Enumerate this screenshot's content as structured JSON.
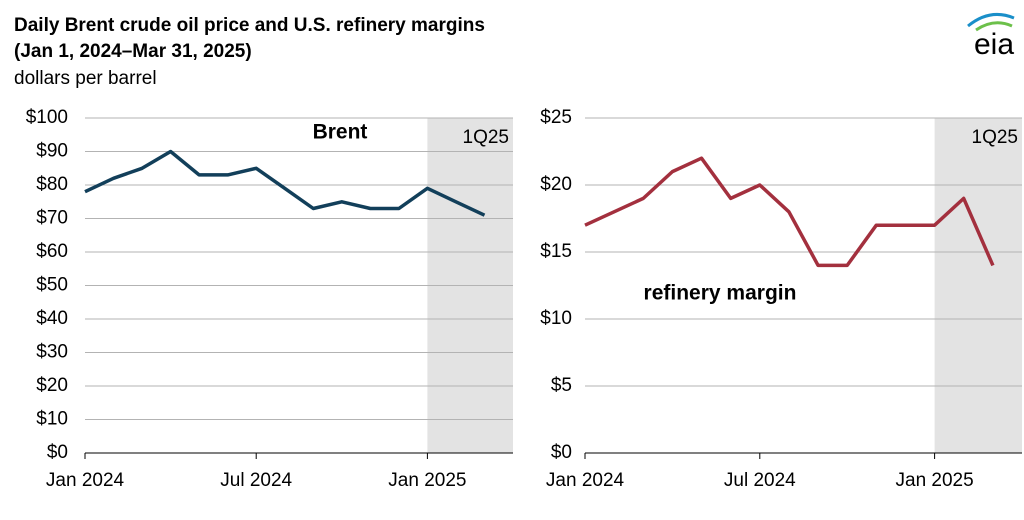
{
  "title": "Daily Brent crude oil price and U.S. refinery margins",
  "subtitle": "(Jan 1, 2024–Mar 31, 2025)",
  "y_label": "dollars per barrel",
  "logo": "eia",
  "chart_data": [
    {
      "type": "line",
      "x": [
        "2024-01",
        "2024-02",
        "2024-03",
        "2024-04",
        "2024-05",
        "2024-06",
        "2024-07",
        "2024-08",
        "2024-09",
        "2024-10",
        "2024-11",
        "2024-12",
        "2025-01",
        "2025-02",
        "2025-03"
      ],
      "series": [
        {
          "name": "Brent",
          "color": "#123f5a",
          "values": [
            78,
            82,
            85,
            90,
            83,
            83,
            85,
            79,
            73,
            75,
            73,
            73,
            79,
            75,
            71
          ]
        }
      ],
      "xlim": [
        "2024-01",
        "2025-04"
      ],
      "xticks": [
        {
          "value": "2024-01",
          "label": "Jan 2024"
        },
        {
          "value": "2024-07",
          "label": "Jul 2024"
        },
        {
          "value": "2025-01",
          "label": "Jan 2025"
        }
      ],
      "ylim": [
        0,
        100
      ],
      "yticks": [
        {
          "value": 0,
          "label": "$0"
        },
        {
          "value": 10,
          "label": "$10"
        },
        {
          "value": 20,
          "label": "$20"
        },
        {
          "value": 30,
          "label": "$30"
        },
        {
          "value": 40,
          "label": "$40"
        },
        {
          "value": 50,
          "label": "$50"
        },
        {
          "value": 60,
          "label": "$60"
        },
        {
          "value": 70,
          "label": "$70"
        },
        {
          "value": 80,
          "label": "$80"
        },
        {
          "value": 90,
          "label": "$90"
        },
        {
          "value": 100,
          "label": "$100"
        }
      ],
      "grid": true,
      "shade": {
        "label": "1Q25",
        "range": [
          "2025-01",
          "2025-04"
        ]
      }
    },
    {
      "type": "line",
      "x": [
        "2024-01",
        "2024-02",
        "2024-03",
        "2024-04",
        "2024-05",
        "2024-06",
        "2024-07",
        "2024-08",
        "2024-09",
        "2024-10",
        "2024-11",
        "2024-12",
        "2025-01",
        "2025-02",
        "2025-03"
      ],
      "series": [
        {
          "name": "refinery margin",
          "color": "#a3303e",
          "values": [
            17,
            18,
            19,
            21,
            22,
            19,
            20,
            18,
            14,
            14,
            17,
            17,
            17,
            19,
            14
          ]
        }
      ],
      "xlim": [
        "2024-01",
        "2025-04"
      ],
      "xticks": [
        {
          "value": "2024-01",
          "label": "Jan 2024"
        },
        {
          "value": "2024-07",
          "label": "Jul 2024"
        },
        {
          "value": "2025-01",
          "label": "Jan 2025"
        }
      ],
      "ylim": [
        0,
        25
      ],
      "yticks": [
        {
          "value": 0,
          "label": "$0"
        },
        {
          "value": 5,
          "label": "$5"
        },
        {
          "value": 10,
          "label": "$10"
        },
        {
          "value": 15,
          "label": "$15"
        },
        {
          "value": 20,
          "label": "$20"
        },
        {
          "value": 25,
          "label": "$25"
        }
      ],
      "grid": true,
      "shade": {
        "label": "1Q25",
        "range": [
          "2025-01",
          "2025-04"
        ]
      }
    }
  ]
}
